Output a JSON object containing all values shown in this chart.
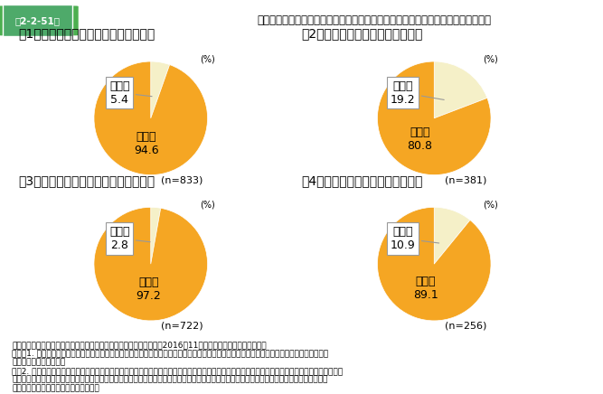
{
  "title": "第2-2-51図　後継者決定状況別に見た、親族内・親族外承継の割合（小規模法人・個人事業者）",
  "charts": [
    {
      "subtitle": "（1）後継者が決定している小規模法人",
      "n": "n=833",
      "slices": [
        {
          "label": "親族外",
          "value": 5.4,
          "color": "#F5F0C8"
        },
        {
          "label": "親族内",
          "value": 94.6,
          "color": "#F5A623"
        }
      ]
    },
    {
      "subtitle": "（2）後継者候補がいる小規模法人",
      "n": "n=381",
      "slices": [
        {
          "label": "親族外",
          "value": 19.2,
          "color": "#F5F0C8"
        },
        {
          "label": "親族内",
          "value": 80.8,
          "color": "#F5A623"
        }
      ]
    },
    {
      "subtitle": "（3）後継者が決定している個人事業者",
      "n": "n=722",
      "slices": [
        {
          "label": "親族外",
          "value": 2.8,
          "color": "#F5F0C8"
        },
        {
          "label": "親族内",
          "value": 97.2,
          "color": "#F5A623"
        }
      ]
    },
    {
      "subtitle": "（4）後継者候補がいる個人事業者",
      "n": "n=256",
      "slices": [
        {
          "label": "親族外",
          "value": 10.9,
          "color": "#F5F0C8"
        },
        {
          "label": "親族内",
          "value": 89.1,
          "color": "#F5A623"
        }
      ]
    }
  ],
  "footnote_lines": [
    "資料：中小企業庁委託「企業経営の継続に関するアンケート調査」（2016年11月、（株）東京商エリサーチ）",
    "（注）1. 経営を任せる後継者について「決まっている（後継者の了承を得ている）」、「候補者もいない、または未定である」と回答した者を",
    "　　　　集計している。",
    "　　2. ここでいう親族内とは、後継者または後継者候補について「配偶者」、「子供」、「子供の配偶者」、「孫」、「兄弟姉妹」、「その他親族」",
    "　　　と回答した者をいう。また、ここでいう親族外とは、後継者または後継者候補について「親族以外の役員」、「親族以外の従業員」、「社",
    "　　　外の人材」と回答した者をいう。"
  ],
  "header_bg": "#4CAF50",
  "header_text_color": "#ffffff",
  "bg_color": "#ffffff",
  "label_fontsize": 9,
  "subtitle_fontsize": 10,
  "value_fontsize": 11,
  "footnote_fontsize": 6.5
}
